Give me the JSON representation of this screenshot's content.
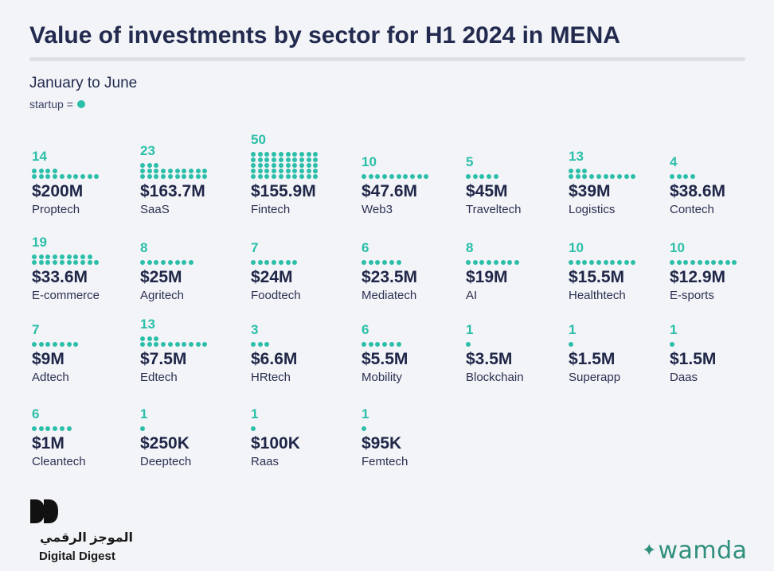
{
  "title": "Value of investments by sector for H1 2024 in MENA",
  "subtitle": "January to June",
  "legend": {
    "label": "startup ="
  },
  "colors": {
    "accent": "#2bbfa9",
    "text": "#1f2647",
    "background": "#f3f4f8"
  },
  "chart_data": {
    "type": "table",
    "title": "Value of investments by sector for H1 2024 in MENA",
    "subtitle": "January to June",
    "unit_note": "one dot = one startup",
    "sectors": [
      {
        "sector": "Proptech",
        "value": "$200M",
        "startups": 14
      },
      {
        "sector": "SaaS",
        "value": "$163.7M",
        "startups": 23
      },
      {
        "sector": "Fintech",
        "value": "$155.9M",
        "startups": 50
      },
      {
        "sector": "Web3",
        "value": "$47.6M",
        "startups": 10
      },
      {
        "sector": "Traveltech",
        "value": "$45M",
        "startups": 5
      },
      {
        "sector": "Logistics",
        "value": "$39M",
        "startups": 13
      },
      {
        "sector": "Contech",
        "value": "$38.6M",
        "startups": 4
      },
      {
        "sector": "E-commerce",
        "value": "$33.6M",
        "startups": 19
      },
      {
        "sector": "Agritech",
        "value": "$25M",
        "startups": 8
      },
      {
        "sector": "Foodtech",
        "value": "$24M",
        "startups": 7
      },
      {
        "sector": "Mediatech",
        "value": "$23.5M",
        "startups": 6
      },
      {
        "sector": "AI",
        "value": "$19M",
        "startups": 8
      },
      {
        "sector": "Healthtech",
        "value": "$15.5M",
        "startups": 10
      },
      {
        "sector": "E-sports",
        "value": "$12.9M",
        "startups": 10
      },
      {
        "sector": "Adtech",
        "value": "$9M",
        "startups": 7
      },
      {
        "sector": "Edtech",
        "value": "$7.5M",
        "startups": 13
      },
      {
        "sector": "HRtech",
        "value": "$6.6M",
        "startups": 3
      },
      {
        "sector": "Mobility",
        "value": "$5.5M",
        "startups": 6
      },
      {
        "sector": "Blockchain",
        "value": "$3.5M",
        "startups": 1
      },
      {
        "sector": "Superapp",
        "value": "$1.5M",
        "startups": 1
      },
      {
        "sector": "Daas",
        "value": "$1.5M",
        "startups": 1
      },
      {
        "sector": "Cleantech",
        "value": "$1M",
        "startups": 6
      },
      {
        "sector": "Deeptech",
        "value": "$250K",
        "startups": 1
      },
      {
        "sector": "Raas",
        "value": "$100K",
        "startups": 1
      },
      {
        "sector": "Femtech",
        "value": "$95K",
        "startups": 1
      }
    ]
  },
  "logos": {
    "digital_digest_arabic": "الموجز الرقمي",
    "digital_digest_english": "Digital Digest",
    "wamda": "wamda"
  },
  "icons": {
    "digital_digest_mark": "double-d-mark-icon",
    "wamda_mark": "sparkle-icon"
  }
}
